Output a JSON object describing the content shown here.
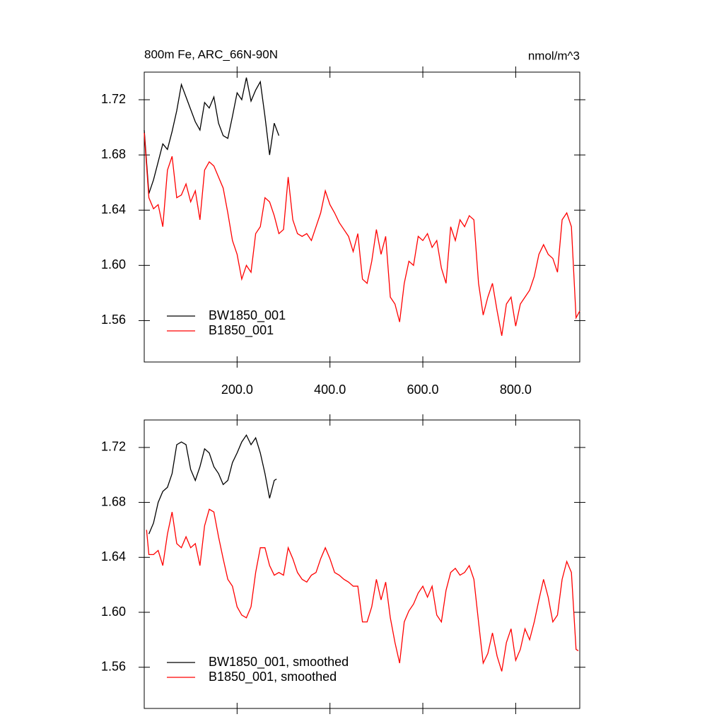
{
  "chart_data": [
    {
      "type": "line",
      "title": "800m Fe, ARC_66N-90N",
      "units": "nmol/m^3",
      "xlim": [
        0,
        938
      ],
      "ylim": [
        1.53,
        1.74
      ],
      "xticks": [
        {
          "value": 200,
          "label": "200.0"
        },
        {
          "value": 400,
          "label": "400.0"
        },
        {
          "value": 600,
          "label": "600.0"
        },
        {
          "value": 800,
          "label": "800.0"
        }
      ],
      "yticks": [
        1.56,
        {
          "value": 1.6,
          "label": "1.60"
        },
        1.64,
        1.68,
        1.72
      ],
      "legend": "lower left",
      "series": [
        {
          "name": "BW1850_001",
          "color": "#000000",
          "x": [
            0,
            10,
            20,
            30,
            40,
            50,
            60,
            70,
            80,
            90,
            100,
            110,
            120,
            130,
            140,
            150,
            160,
            170,
            180,
            190,
            200,
            210,
            220,
            230,
            240,
            250,
            260,
            270,
            280,
            290
          ],
          "values": [
            1.698,
            1.652,
            1.662,
            1.675,
            1.688,
            1.684,
            1.697,
            1.712,
            1.731,
            1.722,
            1.713,
            1.704,
            1.698,
            1.718,
            1.714,
            1.722,
            1.703,
            1.694,
            1.692,
            1.708,
            1.725,
            1.72,
            1.736,
            1.719,
            1.727,
            1.733,
            1.708,
            1.68,
            1.703,
            1.694
          ]
        },
        {
          "name": "B1850_001",
          "color": "#ff0000",
          "x": [
            0,
            10,
            20,
            30,
            40,
            50,
            60,
            70,
            80,
            90,
            100,
            110,
            120,
            130,
            140,
            150,
            160,
            170,
            180,
            190,
            200,
            210,
            220,
            230,
            240,
            250,
            260,
            270,
            280,
            290,
            300,
            310,
            320,
            330,
            340,
            350,
            360,
            370,
            380,
            390,
            400,
            410,
            420,
            430,
            440,
            450,
            460,
            470,
            480,
            490,
            500,
            510,
            520,
            530,
            540,
            550,
            560,
            570,
            580,
            590,
            600,
            610,
            620,
            630,
            640,
            650,
            660,
            670,
            680,
            690,
            700,
            710,
            720,
            730,
            740,
            750,
            760,
            770,
            780,
            790,
            800,
            810,
            820,
            830,
            840,
            850,
            860,
            870,
            880,
            890,
            900,
            910,
            920,
            930,
            938
          ],
          "values": [
            1.696,
            1.649,
            1.641,
            1.644,
            1.628,
            1.669,
            1.679,
            1.649,
            1.651,
            1.659,
            1.646,
            1.654,
            1.633,
            1.669,
            1.675,
            1.672,
            1.664,
            1.656,
            1.638,
            1.618,
            1.608,
            1.59,
            1.6,
            1.595,
            1.623,
            1.628,
            1.649,
            1.646,
            1.636,
            1.623,
            1.626,
            1.664,
            1.633,
            1.623,
            1.621,
            1.623,
            1.618,
            1.628,
            1.638,
            1.654,
            1.644,
            1.638,
            1.631,
            1.626,
            1.621,
            1.61,
            1.623,
            1.59,
            1.587,
            1.603,
            1.626,
            1.608,
            1.621,
            1.577,
            1.572,
            1.559,
            1.587,
            1.603,
            1.6,
            1.621,
            1.618,
            1.623,
            1.613,
            1.618,
            1.598,
            1.587,
            1.628,
            1.618,
            1.633,
            1.628,
            1.636,
            1.633,
            1.587,
            1.564,
            1.577,
            1.587,
            1.567,
            1.549,
            1.572,
            1.577,
            1.556,
            1.572,
            1.577,
            1.582,
            1.592,
            1.608,
            1.615,
            1.608,
            1.605,
            1.595,
            1.633,
            1.638,
            1.628,
            1.562,
            1.567
          ]
        }
      ]
    },
    {
      "type": "line",
      "xlim": [
        0,
        938
      ],
      "ylim": [
        1.53,
        1.74
      ],
      "xticks": [
        200,
        400,
        600,
        800
      ],
      "xtick_labels": false,
      "yticks": [
        1.56,
        {
          "value": 1.6,
          "label": "1.60"
        },
        1.64,
        1.68,
        1.72
      ],
      "legend": "lower left",
      "series": [
        {
          "name": "BW1850_001, smoothed",
          "color": "#000000",
          "x": [
            10,
            20,
            30,
            40,
            50,
            60,
            70,
            80,
            90,
            100,
            110,
            120,
            130,
            140,
            150,
            160,
            170,
            180,
            190,
            200,
            210,
            220,
            230,
            240,
            250,
            260,
            270,
            280,
            285
          ],
          "values": [
            1.657,
            1.665,
            1.68,
            1.688,
            1.691,
            1.701,
            1.722,
            1.724,
            1.722,
            1.704,
            1.696,
            1.706,
            1.719,
            1.716,
            1.706,
            1.701,
            1.693,
            1.696,
            1.709,
            1.716,
            1.724,
            1.729,
            1.722,
            1.727,
            1.716,
            1.701,
            1.683,
            1.696,
            1.697
          ]
        },
        {
          "name": "B1850_001, smoothed",
          "color": "#ff0000",
          "x": [
            5,
            10,
            20,
            30,
            40,
            50,
            60,
            70,
            80,
            90,
            100,
            110,
            120,
            130,
            140,
            150,
            160,
            170,
            180,
            190,
            200,
            210,
            220,
            230,
            240,
            250,
            260,
            270,
            280,
            290,
            300,
            310,
            320,
            330,
            340,
            350,
            360,
            370,
            380,
            390,
            400,
            410,
            420,
            430,
            440,
            450,
            460,
            470,
            480,
            490,
            500,
            510,
            520,
            530,
            540,
            550,
            560,
            570,
            580,
            590,
            600,
            610,
            620,
            630,
            640,
            650,
            660,
            670,
            680,
            690,
            700,
            710,
            720,
            730,
            740,
            750,
            760,
            770,
            780,
            790,
            800,
            810,
            820,
            830,
            840,
            850,
            860,
            870,
            880,
            890,
            900,
            910,
            920,
            930,
            935
          ],
          "values": [
            1.66,
            1.642,
            1.642,
            1.645,
            1.634,
            1.657,
            1.673,
            1.65,
            1.647,
            1.655,
            1.647,
            1.65,
            1.634,
            1.663,
            1.675,
            1.673,
            1.655,
            1.639,
            1.624,
            1.619,
            1.604,
            1.598,
            1.596,
            1.604,
            1.629,
            1.647,
            1.647,
            1.634,
            1.627,
            1.629,
            1.627,
            1.647,
            1.639,
            1.629,
            1.624,
            1.622,
            1.627,
            1.629,
            1.639,
            1.647,
            1.639,
            1.629,
            1.627,
            1.624,
            1.622,
            1.619,
            1.619,
            1.593,
            1.593,
            1.604,
            1.624,
            1.609,
            1.622,
            1.596,
            1.578,
            1.563,
            1.593,
            1.601,
            1.606,
            1.614,
            1.619,
            1.611,
            1.619,
            1.598,
            1.593,
            1.616,
            1.629,
            1.632,
            1.627,
            1.629,
            1.634,
            1.624,
            1.593,
            1.563,
            1.57,
            1.585,
            1.568,
            1.557,
            1.578,
            1.588,
            1.565,
            1.573,
            1.588,
            1.58,
            1.593,
            1.609,
            1.624,
            1.611,
            1.593,
            1.598,
            1.624,
            1.637,
            1.629,
            1.573,
            1.572
          ]
        }
      ]
    }
  ]
}
